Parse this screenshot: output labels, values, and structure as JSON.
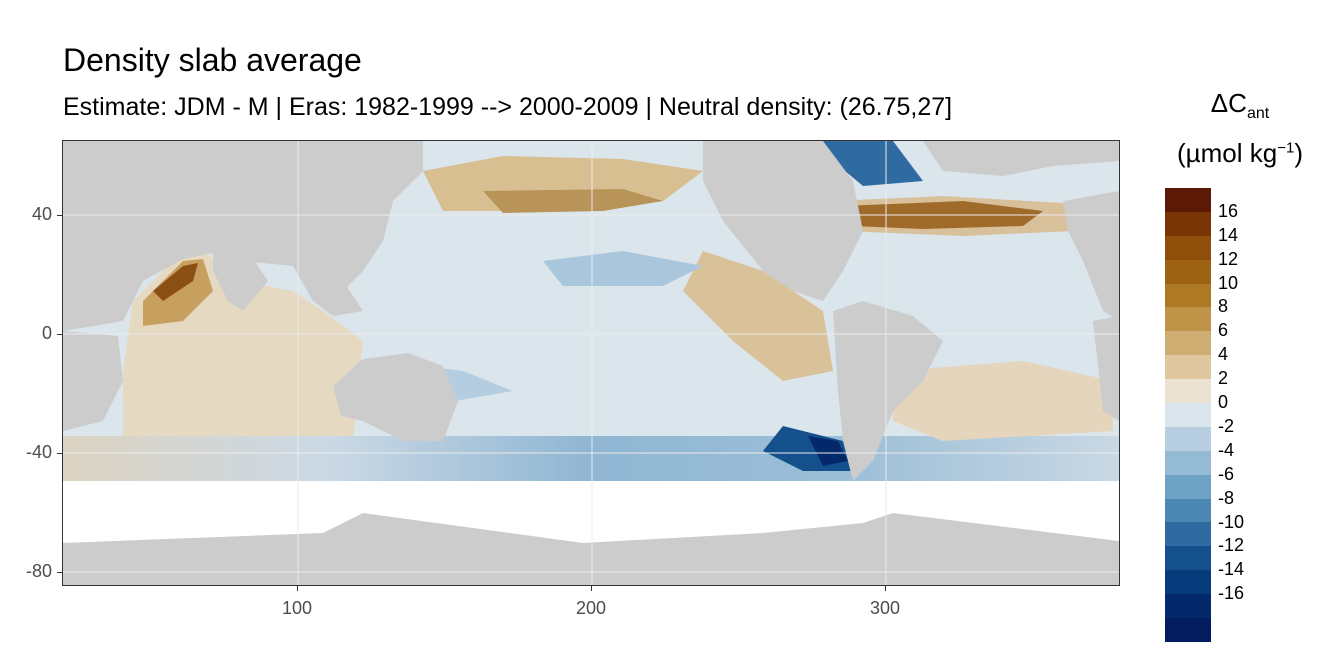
{
  "title": "Density slab average",
  "subtitle": "Estimate: JDM - M | Eras: 1982-1999 --> 2000-2009 | Neutral density: (26.75,27]",
  "legend": {
    "title_symbol": "ΔC",
    "title_subscript": "ant",
    "unit_main": "(µmol kg",
    "unit_sup": "−1",
    "unit_close": ")",
    "labels": [
      "16",
      "14",
      "12",
      "10",
      "8",
      "6",
      "4",
      "2",
      "0",
      "-2",
      "-4",
      "-6",
      "-8",
      "-10",
      "-12",
      "-14",
      "-16"
    ],
    "colors": [
      "#5c1a06",
      "#7a3507",
      "#8f4f0b",
      "#9e6312",
      "#ae7a25",
      "#bf9448",
      "#cfae74",
      "#dfc89f",
      "#ebe2d2",
      "#dbe5ec",
      "#b7cfe0",
      "#94bad4",
      "#6ea3c5",
      "#4c87b3",
      "#2f6aa0",
      "#14508c",
      "#063c7c",
      "#04296b",
      "#021c5e"
    ]
  },
  "axes": {
    "x_ticks": [
      "100",
      "200",
      "300"
    ],
    "y_ticks": [
      "40",
      "0",
      "-40",
      "-80"
    ]
  },
  "colors": {
    "land": "#cccccc",
    "no_data": "#ffffff",
    "grid": "#ebebeb",
    "positive": "#b97a2a",
    "negative": "#1f5f9c"
  }
}
